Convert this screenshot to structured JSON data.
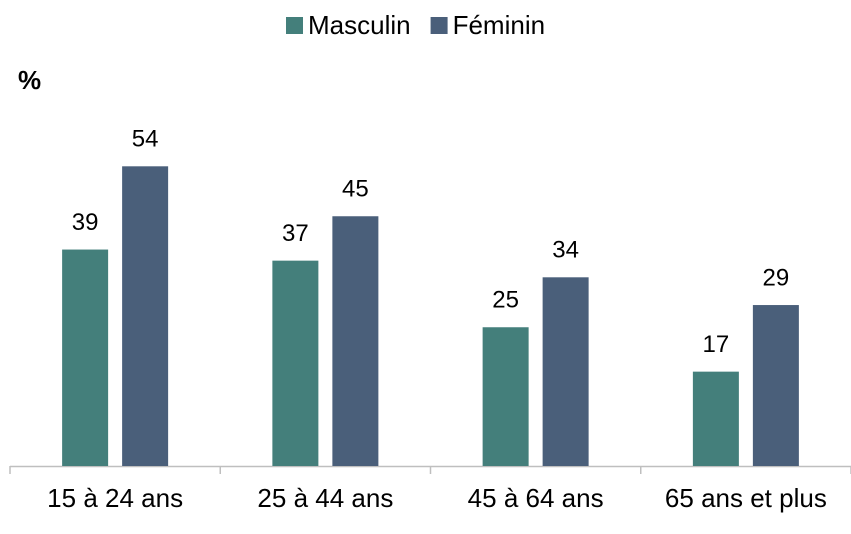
{
  "chart_data": {
    "type": "bar",
    "y_label": "%",
    "categories": [
      "15 à 24 ans",
      "25 à 44 ans",
      "45 à 64 ans",
      "65 ans et plus"
    ],
    "series": [
      {
        "name": "Masculin",
        "color": "#447f7b",
        "values": [
          39,
          37,
          25,
          17
        ]
      },
      {
        "name": "Féminin",
        "color": "#4a5f7a",
        "values": [
          54,
          45,
          34,
          29
        ]
      }
    ],
    "ylim": [
      0,
      60
    ],
    "legend": "top"
  }
}
